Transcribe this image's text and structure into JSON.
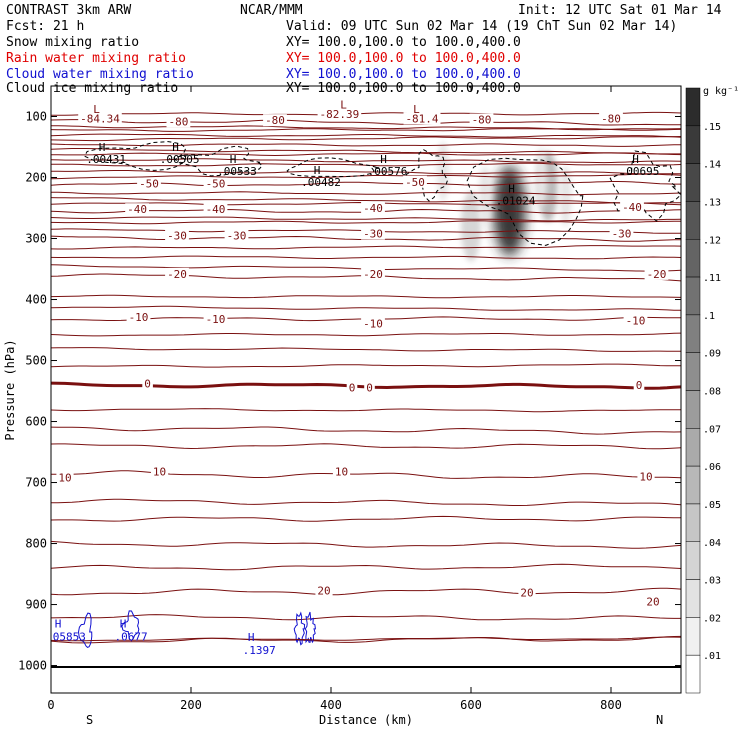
{
  "header": {
    "left_line1": "CONTRAST  3km ARW",
    "center_line1": "NCAR/MMM",
    "right_line1": "Init: 12 UTC Sat 01 Mar 14",
    "left_line2": "Fcst:   21 h",
    "right_line2": "Valid: 09 UTC Sun 02 Mar 14 (19 ChT Sun 02 Mar 14)",
    "field_lines": [
      {
        "name": "Snow mixing ratio",
        "xy": "XY= 100.0,100.0 to 100.0,400.0",
        "color": "#000000"
      },
      {
        "name": "Rain water mixing ratio",
        "xy": "XY= 100.0,100.0 to 100.0,400.0",
        "color": "#e00000"
      },
      {
        "name": "Cloud water mixing ratio",
        "xy": "XY= 100.0,100.0 to 100.0,400.0",
        "color": "#1010d0"
      },
      {
        "name": "Cloud ice mixing ratio",
        "xy": "XY= 100.0,100.0 to 100.0,400.0",
        "color": "#000000"
      }
    ]
  },
  "chart_data": {
    "type": "cross-section contour",
    "xlabel": "Distance (km)",
    "ylabel": "Pressure (hPa)",
    "xlim": [
      0,
      900
    ],
    "ylim": [
      1045,
      50
    ],
    "x_ticks": [
      0,
      200,
      400,
      600,
      800
    ],
    "y_ticks": [
      100,
      200,
      300,
      400,
      500,
      600,
      700,
      800,
      900,
      1000
    ],
    "x_end_labels": {
      "left": "S",
      "right": "N"
    },
    "colorbar": {
      "unit": "g kg⁻¹",
      "levels": [
        ".01",
        ".02",
        ".03",
        ".04",
        ".05",
        ".06",
        ".07",
        ".08",
        ".09",
        ".1",
        ".11",
        ".12",
        ".13",
        ".14",
        ".15"
      ],
      "colors": [
        "#ffffff",
        "#f0f0f0",
        "#e2e2e2",
        "#d4d4d4",
        "#c6c6c6",
        "#b8b8b8",
        "#aaaaaa",
        "#9c9c9c",
        "#8e8e8e",
        "#808080",
        "#727272",
        "#646464",
        "#565656",
        "#484848",
        "#3a3a3a",
        "#2c2c2c"
      ]
    },
    "temperature_contours_color": "#7a1010",
    "temperature_contours": [
      {
        "value": 20,
        "pressure": 880,
        "labels": [
          {
            "text": "20",
            "x": 390,
            "p": 877
          },
          {
            "text": "20",
            "x": 680,
            "p": 880
          },
          {
            "text": "20",
            "x": 860,
            "p": 895
          }
        ]
      },
      {
        "value": 10,
        "pressure": 685,
        "labels": [
          {
            "text": "10",
            "x": 20,
            "p": 692
          },
          {
            "text": "10",
            "x": 155,
            "p": 682
          },
          {
            "text": "10",
            "x": 415,
            "p": 682
          },
          {
            "text": "10",
            "x": 850,
            "p": 690
          }
        ]
      },
      {
        "value": 0,
        "pressure": 540,
        "thick": true,
        "labels": [
          {
            "text": "0",
            "x": 138,
            "p": 538
          },
          {
            "text": "0",
            "x": 430,
            "p": 544
          },
          {
            "text": "0",
            "x": 455,
            "p": 544
          },
          {
            "text": "0",
            "x": 840,
            "p": 540
          }
        ]
      },
      {
        "value": -10,
        "pressure": 432,
        "labels": [
          {
            "text": "-10",
            "x": 125,
            "p": 429
          },
          {
            "text": "-10",
            "x": 235,
            "p": 432
          },
          {
            "text": "-10",
            "x": 460,
            "p": 439
          },
          {
            "text": "-10",
            "x": 835,
            "p": 434
          }
        ]
      },
      {
        "value": -20,
        "pressure": 360,
        "labels": [
          {
            "text": "-20",
            "x": 180,
            "p": 358
          },
          {
            "text": "-20",
            "x": 460,
            "p": 358
          },
          {
            "text": "-20",
            "x": 865,
            "p": 358
          }
        ]
      },
      {
        "value": -30,
        "pressure": 298,
        "labels": [
          {
            "text": "-30",
            "x": 180,
            "p": 295
          },
          {
            "text": "-30",
            "x": 265,
            "p": 295
          },
          {
            "text": "-30",
            "x": 460,
            "p": 292
          },
          {
            "text": "-30",
            "x": 815,
            "p": 292
          }
        ]
      },
      {
        "value": -40,
        "pressure": 255,
        "labels": [
          {
            "text": "-40",
            "x": 123,
            "p": 252
          },
          {
            "text": "-40",
            "x": 235,
            "p": 252
          },
          {
            "text": "-40",
            "x": 460,
            "p": 250
          },
          {
            "text": "-40",
            "x": 830,
            "p": 248
          }
        ]
      },
      {
        "value": -50,
        "pressure": 212,
        "labels": [
          {
            "text": "-50",
            "x": 140,
            "p": 210
          },
          {
            "text": "-50",
            "x": 235,
            "p": 210
          },
          {
            "text": "-50",
            "x": 520,
            "p": 207
          }
        ]
      },
      {
        "value": -80,
        "pressure": 107,
        "labels": [
          {
            "text": "-80",
            "x": 182,
            "p": 108
          },
          {
            "text": "-80",
            "x": 320,
            "p": 106
          },
          {
            "text": "-80",
            "x": 615,
            "p": 105
          },
          {
            "text": "-80",
            "x": 800,
            "p": 103
          }
        ]
      }
    ],
    "extra_contour_labels": [
      {
        "text": "-84.34",
        "x": 70,
        "p": 103
      },
      {
        "text": "-82.39",
        "x": 412,
        "p": 96
      },
      {
        "text": "-81.4",
        "x": 530,
        "p": 103
      }
    ],
    "low_markers": [
      {
        "text": "L",
        "x": 65,
        "p": 88
      },
      {
        "text": "L",
        "x": 418,
        "p": 80
      },
      {
        "text": "L",
        "x": 522,
        "p": 88
      }
    ],
    "high_markers": [
      {
        "text": "H",
        "value": ".00431",
        "x": 73,
        "p": 150
      },
      {
        "text": "H",
        "value": ".00505",
        "x": 178,
        "p": 150
      },
      {
        "text": "H",
        "value": ".00533",
        "x": 260,
        "p": 170
      },
      {
        "text": "H",
        "value": ".00482",
        "x": 380,
        "p": 188
      },
      {
        "text": "H",
        "value": ".00576",
        "x": 475,
        "p": 170
      },
      {
        "text": "H",
        "value": ".01024",
        "x": 658,
        "p": 218
      },
      {
        "text": "H",
        "value": ".00695",
        "x": 835,
        "p": 170
      }
    ],
    "cloud_water_markers": [
      {
        "text": "H",
        "value": ".05853",
        "x": 10,
        "p": 938
      },
      {
        "text": "H",
        "value": ".0677",
        "x": 103,
        "p": 938
      },
      {
        "text": "H",
        "value": ".1397",
        "x": 286,
        "p": 960
      }
    ],
    "shaded_maxima": [
      {
        "x": 655,
        "p": 255,
        "value": 0.145
      },
      {
        "x": 710,
        "p": 215,
        "value": 0.05
      },
      {
        "x": 600,
        "p": 280,
        "value": 0.03
      }
    ]
  }
}
